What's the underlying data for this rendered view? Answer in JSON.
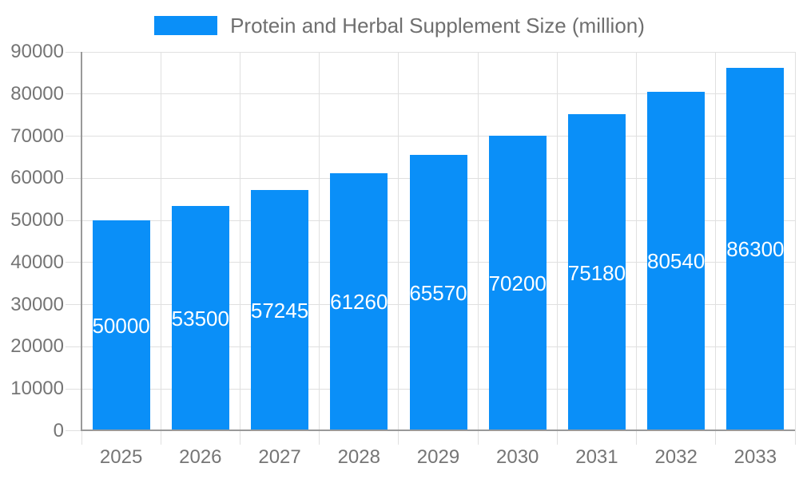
{
  "chart_data": {
    "type": "bar",
    "title": "Protein and Herbal Supplement Size (million)",
    "legend": "Protein and Herbal Supplement Size (million)",
    "legend_position": "top",
    "categories": [
      "2025",
      "2026",
      "2027",
      "2028",
      "2029",
      "2030",
      "2031",
      "2032",
      "2033"
    ],
    "values": [
      50000,
      53500,
      57245,
      61260,
      65570,
      70200,
      75180,
      80540,
      86300
    ],
    "value_labels_shown": true,
    "xlabel": "",
    "ylabel": "",
    "ylim": [
      0,
      90000
    ],
    "ytick_step": 10000,
    "yticks": [
      0,
      10000,
      20000,
      30000,
      40000,
      50000,
      60000,
      70000,
      80000,
      90000
    ],
    "grid": true,
    "colors": {
      "bar": "#0a8ff8",
      "gridline": "#e0e0e0",
      "axis_line": "#999999",
      "axis_label": "#757575",
      "legend_text": "#6f6f6f",
      "value_label": "#ffffff",
      "background": "#ffffff"
    }
  }
}
